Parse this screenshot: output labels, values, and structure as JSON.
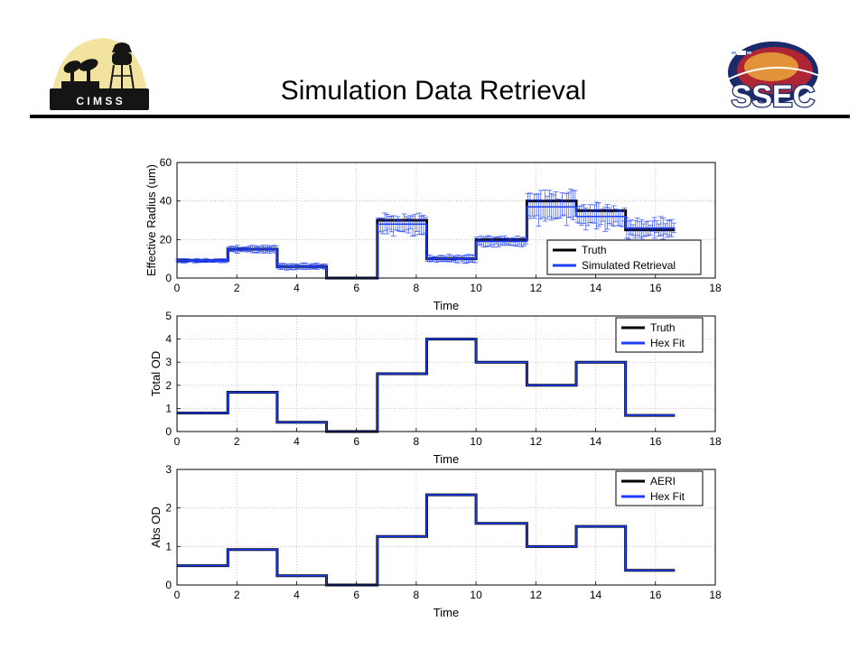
{
  "slide": {
    "title": "Simulation Data Retrieval",
    "logo_left_text": "C I M S S",
    "logo_right_text": "SSEC"
  },
  "colors": {
    "truth": "#000000",
    "retrieval": "#1f3fff",
    "grid": "#bbbbbb",
    "sky_blue": "#d6e6f7",
    "logo_navy": "#1b2a6b",
    "logo_red": "#c8262b"
  },
  "chart_data": [
    {
      "type": "line",
      "xlabel": "Time",
      "ylabel": "Effective Radius (um)",
      "xlim": [
        0,
        18
      ],
      "ylim": [
        0,
        60
      ],
      "xticks": [
        0,
        2,
        4,
        6,
        8,
        10,
        12,
        14,
        16,
        18
      ],
      "yticks": [
        0,
        20,
        40,
        60
      ],
      "grid": true,
      "legend": "bottom-right",
      "series": [
        {
          "name": "Truth",
          "steps": [
            {
              "x0": 0,
              "x1": 1.7,
              "y": 9
            },
            {
              "x0": 1.7,
              "x1": 3.35,
              "y": 15
            },
            {
              "x0": 3.35,
              "x1": 5.0,
              "y": 6
            },
            {
              "x0": 5.0,
              "x1": 6.7,
              "y": 0
            },
            {
              "x0": 6.7,
              "x1": 8.35,
              "y": 30
            },
            {
              "x0": 8.35,
              "x1": 10.0,
              "y": 10
            },
            {
              "x0": 10.0,
              "x1": 11.7,
              "y": 20
            },
            {
              "x0": 11.7,
              "x1": 13.35,
              "y": 40
            },
            {
              "x0": 13.35,
              "x1": 15.0,
              "y": 35
            },
            {
              "x0": 15.0,
              "x1": 16.65,
              "y": 25
            }
          ]
        },
        {
          "name": "Simulated Retrieval",
          "error_bars": true,
          "steps": [
            {
              "x0": 0,
              "x1": 1.7,
              "y": 9,
              "err": 0.8
            },
            {
              "x0": 1.7,
              "x1": 3.35,
              "y": 15,
              "err": 1.5
            },
            {
              "x0": 3.35,
              "x1": 5.0,
              "y": 6,
              "err": 1.2
            },
            {
              "x0": 5.0,
              "x1": 6.7,
              "y": 0,
              "err": 0
            },
            {
              "x0": 6.7,
              "x1": 8.35,
              "y": 28,
              "err": 4
            },
            {
              "x0": 8.35,
              "x1": 10.0,
              "y": 10,
              "err": 1.5
            },
            {
              "x0": 10.0,
              "x1": 11.7,
              "y": 19,
              "err": 2
            },
            {
              "x0": 11.7,
              "x1": 13.35,
              "y": 37,
              "err": 6
            },
            {
              "x0": 13.35,
              "x1": 15.0,
              "y": 32,
              "err": 5
            },
            {
              "x0": 15.0,
              "x1": 16.65,
              "y": 26,
              "err": 4
            }
          ]
        }
      ]
    },
    {
      "type": "line",
      "xlabel": "Time",
      "ylabel": "Total OD",
      "xlim": [
        0,
        18
      ],
      "ylim": [
        0,
        5
      ],
      "xticks": [
        0,
        2,
        4,
        6,
        8,
        10,
        12,
        14,
        16,
        18
      ],
      "yticks": [
        0,
        1,
        2,
        3,
        4,
        5
      ],
      "grid": true,
      "legend": "top-right",
      "series": [
        {
          "name": "Truth",
          "steps": [
            {
              "x0": 0,
              "x1": 1.7,
              "y": 0.8
            },
            {
              "x0": 1.7,
              "x1": 3.35,
              "y": 1.7
            },
            {
              "x0": 3.35,
              "x1": 5.0,
              "y": 0.4
            },
            {
              "x0": 5.0,
              "x1": 6.7,
              "y": 0
            },
            {
              "x0": 6.7,
              "x1": 8.35,
              "y": 2.5
            },
            {
              "x0": 8.35,
              "x1": 10.0,
              "y": 4.0
            },
            {
              "x0": 10.0,
              "x1": 11.7,
              "y": 3.0
            },
            {
              "x0": 11.7,
              "x1": 13.35,
              "y": 2.0
            },
            {
              "x0": 13.35,
              "x1": 15.0,
              "y": 3.0
            },
            {
              "x0": 15.0,
              "x1": 16.65,
              "y": 0.7
            }
          ]
        },
        {
          "name": "Hex Fit",
          "steps": [
            {
              "x0": 0,
              "x1": 1.7,
              "y": 0.8
            },
            {
              "x0": 1.7,
              "x1": 3.35,
              "y": 1.7
            },
            {
              "x0": 3.35,
              "x1": 5.0,
              "y": 0.4
            },
            {
              "x0": 5.0,
              "x1": 6.7,
              "y": 0
            },
            {
              "x0": 6.7,
              "x1": 8.35,
              "y": 2.5
            },
            {
              "x0": 8.35,
              "x1": 10.0,
              "y": 4.0
            },
            {
              "x0": 10.0,
              "x1": 11.7,
              "y": 3.0
            },
            {
              "x0": 11.7,
              "x1": 13.35,
              "y": 2.0
            },
            {
              "x0": 13.35,
              "x1": 15.0,
              "y": 3.0
            },
            {
              "x0": 15.0,
              "x1": 16.65,
              "y": 0.7
            }
          ]
        }
      ]
    },
    {
      "type": "line",
      "xlabel": "Time",
      "ylabel": "Abs OD",
      "xlim": [
        0,
        18
      ],
      "ylim": [
        0,
        3
      ],
      "xticks": [
        0,
        2,
        4,
        6,
        8,
        10,
        12,
        14,
        16,
        18
      ],
      "yticks": [
        0,
        1,
        2,
        3
      ],
      "grid": true,
      "legend": "top-right",
      "series": [
        {
          "name": "AERI",
          "steps": [
            {
              "x0": 0,
              "x1": 1.7,
              "y": 0.5
            },
            {
              "x0": 1.7,
              "x1": 3.35,
              "y": 0.92
            },
            {
              "x0": 3.35,
              "x1": 5.0,
              "y": 0.24
            },
            {
              "x0": 5.0,
              "x1": 6.7,
              "y": 0
            },
            {
              "x0": 6.7,
              "x1": 8.35,
              "y": 1.26
            },
            {
              "x0": 8.35,
              "x1": 10.0,
              "y": 2.34
            },
            {
              "x0": 10.0,
              "x1": 11.7,
              "y": 1.6
            },
            {
              "x0": 11.7,
              "x1": 13.35,
              "y": 1.0
            },
            {
              "x0": 13.35,
              "x1": 15.0,
              "y": 1.52
            },
            {
              "x0": 15.0,
              "x1": 16.65,
              "y": 0.38
            }
          ]
        },
        {
          "name": "Hex Fit",
          "steps": [
            {
              "x0": 0,
              "x1": 1.7,
              "y": 0.5
            },
            {
              "x0": 1.7,
              "x1": 3.35,
              "y": 0.92
            },
            {
              "x0": 3.35,
              "x1": 5.0,
              "y": 0.24
            },
            {
              "x0": 5.0,
              "x1": 6.7,
              "y": 0
            },
            {
              "x0": 6.7,
              "x1": 8.35,
              "y": 1.26
            },
            {
              "x0": 8.35,
              "x1": 10.0,
              "y": 2.34
            },
            {
              "x0": 10.0,
              "x1": 11.7,
              "y": 1.6
            },
            {
              "x0": 11.7,
              "x1": 13.35,
              "y": 1.0
            },
            {
              "x0": 13.35,
              "x1": 15.0,
              "y": 1.52
            },
            {
              "x0": 15.0,
              "x1": 16.65,
              "y": 0.38
            }
          ]
        }
      ]
    }
  ]
}
